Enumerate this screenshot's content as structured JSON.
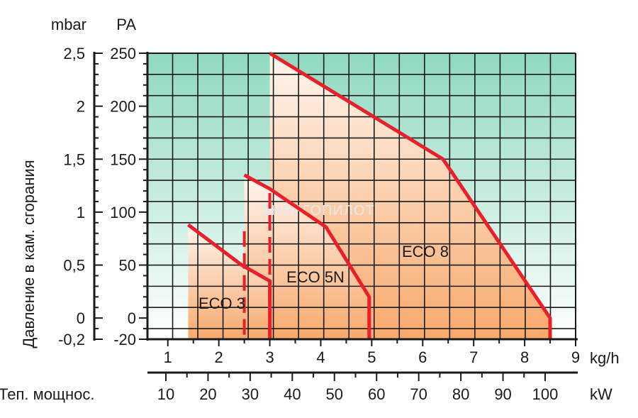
{
  "chart_data": {
    "type": "area",
    "units": {
      "mbar": "mbar",
      "pa": "PA",
      "kgh": "kg/h",
      "kw": "kW"
    },
    "ylabel": "Давление в кам. сгорания",
    "x2label": "Теп. мощнос.",
    "watermark": "ЭНЕРГОПИЛОТ",
    "ylim_pa": [
      -20,
      250
    ],
    "xlim_kgh": [
      0.6,
      9
    ],
    "y_ticks": [
      {
        "mbar": "2,5",
        "pa": "250",
        "v": 250
      },
      {
        "mbar": "2",
        "pa": "200",
        "v": 200
      },
      {
        "mbar": "1,5",
        "pa": "150",
        "v": 150
      },
      {
        "mbar": "1",
        "pa": "100",
        "v": 100
      },
      {
        "mbar": "0,5",
        "pa": "50",
        "v": 50
      },
      {
        "mbar": "0",
        "pa": "0",
        "v": 0
      },
      {
        "mbar": "-0,2",
        "pa": "-20",
        "v": -20
      }
    ],
    "x_ticks_kgh": [
      "1",
      "2",
      "3",
      "4",
      "5",
      "6",
      "7",
      "8",
      "9"
    ],
    "x_ticks_kw": [
      "10",
      "20",
      "30",
      "40",
      "50",
      "60",
      "70",
      "80",
      "90",
      "100"
    ],
    "grid": true,
    "series": [
      {
        "name": "ECO 3",
        "points": [
          [
            1.4,
            88
          ],
          [
            2.45,
            50
          ],
          [
            3.0,
            35
          ],
          [
            3.0,
            -20
          ]
        ],
        "left_x": 1.4,
        "dashed_right_x": 2.5
      },
      {
        "name": "ECO 5N",
        "points": [
          [
            2.5,
            135
          ],
          [
            3.0,
            122
          ],
          [
            4.1,
            86
          ],
          [
            4.95,
            20
          ],
          [
            4.95,
            -20
          ]
        ],
        "left_x": 2.5,
        "dashed_x": 3.0,
        "dash_range": [
          -20,
          135
        ]
      },
      {
        "name": "ECO 8",
        "points": [
          [
            3.0,
            250
          ],
          [
            6.4,
            150
          ],
          [
            8.5,
            0
          ],
          [
            8.5,
            -20
          ]
        ],
        "left_x": 3.0
      }
    ],
    "colors": {
      "line": "#e8202a",
      "fill_top": "#fef6ef",
      "fill_bottom": "#f7a96c",
      "bg_top": "#8fd9c0",
      "bg_bottom": "#ffffff",
      "grid": "#1a1a1a",
      "watermark": "#e6e6e6"
    }
  }
}
